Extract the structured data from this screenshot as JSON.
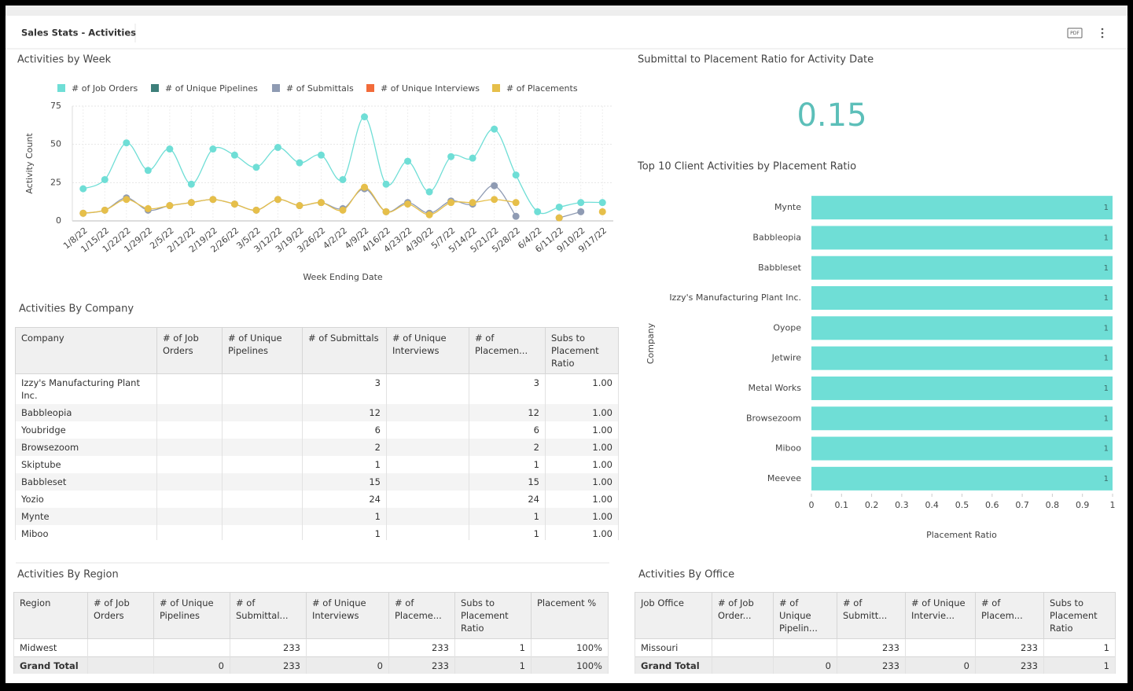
{
  "header": {
    "title": "Sales Stats - Activities",
    "pdf": "PDF"
  },
  "chart_data": [
    {
      "type": "line",
      "title": "Activities by Week",
      "xlabel": "Week Ending Date",
      "ylabel": "Activity Count",
      "categories": [
        "1/8/22",
        "1/15/22",
        "1/22/22",
        "1/29/22",
        "2/5/22",
        "2/12/22",
        "2/19/22",
        "2/26/22",
        "3/5/22",
        "3/12/22",
        "3/19/22",
        "3/26/22",
        "4/2/22",
        "4/9/22",
        "4/16/22",
        "4/23/22",
        "4/30/22",
        "5/7/22",
        "5/14/22",
        "5/21/22",
        "5/28/22",
        "6/4/22",
        "6/11/22",
        "9/10/22",
        "9/17/22"
      ],
      "series": [
        {
          "name": "# of Job Orders",
          "color": "#6fded6",
          "values": [
            21,
            27,
            51,
            33,
            47,
            24,
            47,
            43,
            35,
            48,
            38,
            43,
            27,
            68,
            24,
            39,
            19,
            42,
            41,
            60,
            30,
            6,
            9,
            12,
            12
          ]
        },
        {
          "name": "# of Unique Pipelines",
          "color": "#3d7f7a",
          "values": [
            null,
            null,
            null,
            null,
            null,
            null,
            null,
            null,
            null,
            null,
            null,
            null,
            null,
            null,
            null,
            null,
            null,
            null,
            null,
            null,
            null,
            null,
            null,
            null,
            null
          ]
        },
        {
          "name": "# of Submittals",
          "color": "#8f9bb3",
          "values": [
            5,
            7,
            15,
            7,
            10,
            12,
            14,
            11,
            7,
            14,
            10,
            12,
            8,
            21,
            6,
            12,
            5,
            13,
            11,
            23,
            3,
            null,
            2,
            6,
            null
          ]
        },
        {
          "name": "# of Unique Interviews",
          "color": "#f26b3a",
          "values": [
            null,
            null,
            null,
            null,
            null,
            null,
            null,
            null,
            null,
            null,
            null,
            null,
            null,
            null,
            null,
            null,
            null,
            null,
            null,
            null,
            null,
            null,
            null,
            null,
            null
          ]
        },
        {
          "name": "# of Placements",
          "color": "#e6bf4a",
          "values": [
            5,
            7,
            14,
            8,
            10,
            12,
            14,
            11,
            7,
            14,
            10,
            12,
            7,
            22,
            6,
            11,
            4,
            12,
            12,
            14,
            12,
            null,
            2,
            null,
            6
          ]
        }
      ],
      "ylim": [
        0,
        75
      ],
      "yticks": [
        0,
        25,
        50,
        75
      ],
      "grid": true,
      "legend": "top"
    },
    {
      "type": "hbar",
      "title": "Top 10 Client Activities by Placement Ratio",
      "xlabel": "Placement Ratio",
      "ylabel": "Company",
      "categories": [
        "Mynte",
        "Babbleopia",
        "Babbleset",
        "Izzy's Manufacturing Plant Inc.",
        "Oyope",
        "Jetwire",
        "Metal Works",
        "Browsezoom",
        "Miboo",
        "Meevee"
      ],
      "values": [
        1,
        1,
        1,
        1,
        1,
        1,
        1,
        1,
        1,
        1
      ],
      "color": "#6fded6",
      "xlim": [
        0,
        1
      ],
      "xticks": [
        0,
        0.1,
        0.2,
        0.3,
        0.4,
        0.5,
        0.6,
        0.7,
        0.8,
        0.9,
        1
      ],
      "grid": false
    }
  ],
  "kpi": {
    "title": "Submittal to Placement Ratio for Activity Date",
    "value": 0.15
  },
  "tables": {
    "company": {
      "title": "Activities By Company",
      "columns": [
        "Company",
        "# of Job Orders",
        "# of Unique Pipelines",
        "# of Submittals",
        "# of Unique Interviews",
        "# of Placemen...",
        "Subs to Placement Ratio"
      ],
      "rows": [
        [
          "Izzy's Manufacturing Plant Inc.",
          null,
          null,
          3,
          null,
          3,
          "1.00"
        ],
        [
          "Babbleopia",
          null,
          null,
          12,
          null,
          12,
          "1.00"
        ],
        [
          "Youbridge",
          null,
          null,
          6,
          null,
          6,
          "1.00"
        ],
        [
          "Browsezoom",
          null,
          null,
          2,
          null,
          2,
          "1.00"
        ],
        [
          "Skiptube",
          null,
          null,
          1,
          null,
          1,
          "1.00"
        ],
        [
          "Babbleset",
          null,
          null,
          15,
          null,
          15,
          "1.00"
        ],
        [
          "Yozio",
          null,
          null,
          24,
          null,
          24,
          "1.00"
        ],
        [
          "Mynte",
          null,
          null,
          1,
          null,
          1,
          "1.00"
        ],
        [
          "Miboo",
          null,
          null,
          1,
          null,
          1,
          "1.00"
        ]
      ]
    },
    "region": {
      "title": "Activities By Region",
      "columns": [
        "Region",
        "# of Job Orders",
        "# of Unique Pipelines",
        "# of Submittal...",
        "# of Unique Interviews",
        "# of Placeme...",
        "Subs to Placement Ratio",
        "Placement %"
      ],
      "rows": [
        [
          "Midwest",
          null,
          null,
          233,
          null,
          233,
          1,
          "100%"
        ],
        [
          "Grand Total",
          null,
          0,
          233,
          0,
          233,
          1,
          "100%"
        ]
      ]
    },
    "office": {
      "title": "Activities By Office",
      "columns": [
        "Job Office",
        "# of Job Order...",
        "# of Unique Pipelin...",
        "# of Submitt...",
        "# of Unique Intervie...",
        "# of Placem...",
        "Subs to Placement Ratio"
      ],
      "rows": [
        [
          "Missouri",
          null,
          null,
          233,
          null,
          233,
          1
        ],
        [
          "Grand Total",
          null,
          0,
          233,
          0,
          233,
          1
        ]
      ]
    }
  }
}
